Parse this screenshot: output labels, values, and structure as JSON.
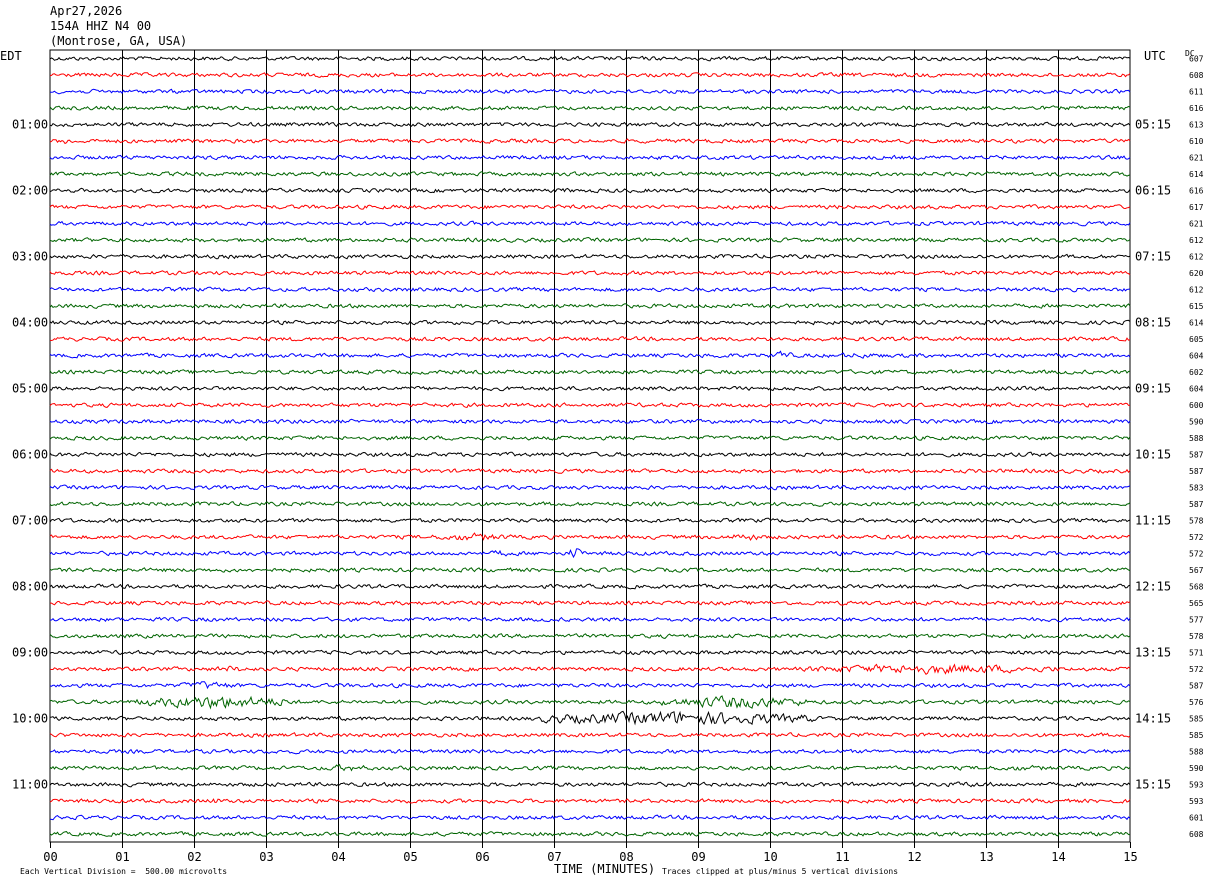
{
  "header": {
    "date": "Apr27,2026",
    "station": "154A HHZ N4 00",
    "location": "(Montrose, GA, USA)"
  },
  "left_zone": "EDT",
  "right_zone": "UTC",
  "dc_label": "DC",
  "footer": {
    "division_note": "Each Vertical Division =  500.00 microvolts",
    "xlabel": "TIME (MINUTES)",
    "clip_note": "Traces clipped at plus/minus 5 vertical divisions"
  },
  "colors": {
    "trace_cycle": [
      "#000000",
      "#ff0000",
      "#0000ff",
      "#006400"
    ],
    "grid": "#000000"
  },
  "chart_data": {
    "type": "line",
    "title": "",
    "xlabel": "TIME (MINUTES)",
    "x_range": [
      0,
      15
    ],
    "x_ticks": [
      "00",
      "01",
      "02",
      "03",
      "04",
      "05",
      "06",
      "07",
      "08",
      "09",
      "10",
      "11",
      "12",
      "13",
      "14",
      "15"
    ],
    "row_count": 48,
    "row_interval_minutes": 15,
    "left_hour_labels": [
      "01:00",
      "02:00",
      "03:00",
      "04:00",
      "05:00",
      "06:00",
      "07:00",
      "08:00",
      "09:00",
      "10:00",
      "11:00"
    ],
    "right_hour_labels": [
      "05:15",
      "06:15",
      "07:15",
      "08:15",
      "09:15",
      "10:15",
      "11:15",
      "12:15",
      "13:15",
      "14:15",
      "15:15"
    ],
    "hour_label_first_row": 4,
    "hour_label_row_step": 4,
    "dc_values": [
      607,
      608,
      611,
      616,
      613,
      610,
      621,
      614,
      616,
      617,
      621,
      612,
      612,
      620,
      612,
      615,
      614,
      605,
      604,
      602,
      604,
      600,
      590,
      588,
      587,
      587,
      583,
      587,
      578,
      572,
      572,
      567,
      568,
      565,
      577,
      578,
      571,
      572,
      587,
      576,
      585,
      585,
      588,
      590,
      593,
      593,
      601,
      608
    ],
    "events": [
      {
        "row": 0,
        "start": 9.65,
        "end": 9.75,
        "amp": 2.0
      },
      {
        "row": 5,
        "start": 0.1,
        "end": 0.3,
        "amp": 2.0
      },
      {
        "row": 8,
        "start": 7.0,
        "end": 7.3,
        "amp": 1.4
      },
      {
        "row": 18,
        "start": 9.0,
        "end": 9.5,
        "amp": 1.5
      },
      {
        "row": 18,
        "start": 10.0,
        "end": 10.3,
        "amp": 2.5
      },
      {
        "row": 18,
        "start": 10.7,
        "end": 11.8,
        "amp": 1.5
      },
      {
        "row": 29,
        "start": 5.2,
        "end": 6.5,
        "amp": 2.0
      },
      {
        "row": 29,
        "start": 9.4,
        "end": 9.9,
        "amp": 2.2
      },
      {
        "row": 30,
        "start": 6.1,
        "end": 6.4,
        "amp": 1.8
      },
      {
        "row": 30,
        "start": 7.2,
        "end": 7.4,
        "amp": 3.5
      },
      {
        "row": 37,
        "start": 2.0,
        "end": 3.0,
        "amp": 1.6
      },
      {
        "row": 37,
        "start": 10.5,
        "end": 14.0,
        "amp": 2.6
      },
      {
        "row": 38,
        "start": 1.8,
        "end": 2.6,
        "amp": 2.2
      },
      {
        "row": 39,
        "start": 1.2,
        "end": 3.4,
        "amp": 3.4
      },
      {
        "row": 39,
        "start": 8.5,
        "end": 10.5,
        "amp": 3.2
      },
      {
        "row": 40,
        "start": 6.8,
        "end": 10.6,
        "amp": 3.6
      },
      {
        "row": 43,
        "start": 3.7,
        "end": 4.5,
        "amp": 1.8
      },
      {
        "row": 43,
        "start": 12.7,
        "end": 14.2,
        "amp": 1.4
      },
      {
        "row": 44,
        "start": 11.8,
        "end": 13.8,
        "amp": 1.4
      },
      {
        "row": 45,
        "start": 2.1,
        "end": 2.5,
        "amp": 1.6
      }
    ]
  }
}
